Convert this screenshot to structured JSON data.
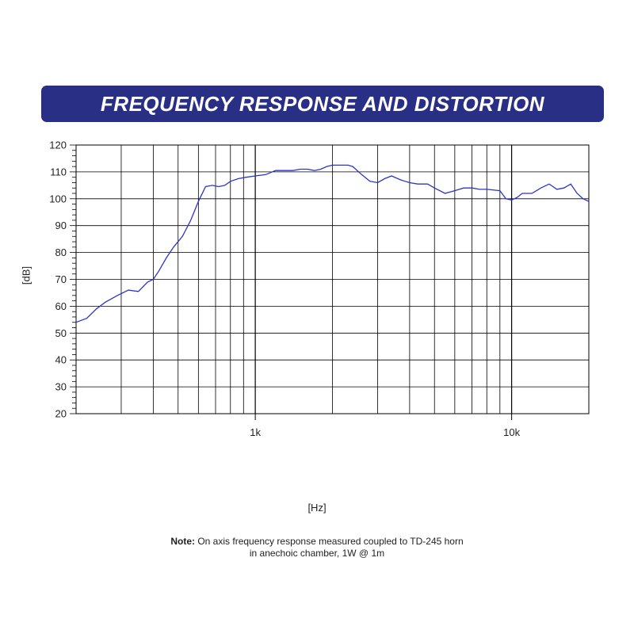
{
  "header": {
    "title": "FREQUENCY RESPONSE AND DISTORTION"
  },
  "note": {
    "label": "Note:",
    "line1": "On axis frequency response measured coupled to TD-245 horn",
    "line2": "in anechoic chamber, 1W @ 1m"
  },
  "colors": {
    "banner": "#2a2f86",
    "curve": "#2b36c8",
    "grid": "#000000"
  },
  "chart_data": {
    "type": "line",
    "title": "FREQUENCY RESPONSE AND DISTORTION",
    "xlabel": "[Hz]",
    "ylabel": "[dB]",
    "xscale": "log",
    "xlim": [
      200,
      20000
    ],
    "ylim": [
      20,
      120
    ],
    "yticks": [
      20,
      30,
      40,
      50,
      60,
      70,
      80,
      90,
      100,
      110,
      120
    ],
    "xtick_labels": [
      {
        "value": 1000,
        "label": "1k"
      },
      {
        "value": 10000,
        "label": "10k"
      }
    ],
    "grid": true,
    "series": [
      {
        "x": [
          200,
          220,
          240,
          260,
          290,
          320,
          350,
          380,
          400,
          420,
          450,
          480,
          520,
          560,
          600,
          640,
          680,
          720,
          760,
          800,
          860,
          920,
          1000,
          1100,
          1200,
          1300,
          1400,
          1500,
          1600,
          1700,
          1800,
          1900,
          2000,
          2100,
          2200,
          2300,
          2400,
          2600,
          2800,
          3000,
          3200,
          3400,
          3700,
          4000,
          4300,
          4700,
          5000,
          5500,
          6000,
          6500,
          7000,
          7500,
          8000,
          9000,
          9500,
          10000,
          10500,
          11000,
          12000,
          12500,
          13000,
          14000,
          14500,
          15000,
          16000,
          17000,
          18000,
          19000,
          20000
        ],
        "y": [
          54,
          55.5,
          59,
          61.5,
          64,
          66,
          65.5,
          69,
          70,
          73,
          78,
          82,
          86,
          92,
          99,
          104.5,
          105,
          104.5,
          105,
          106.5,
          107.5,
          108,
          108.5,
          109,
          110.5,
          110.5,
          110.5,
          111,
          111,
          110.5,
          111,
          112,
          112.5,
          112.5,
          112.5,
          112.5,
          112,
          109,
          106.5,
          106,
          107.5,
          108.5,
          107,
          106,
          105.5,
          105.5,
          104,
          102,
          103,
          104,
          104,
          103.5,
          103.5,
          103,
          100,
          99.5,
          100.5,
          102,
          102,
          103,
          104,
          105.5,
          104.5,
          103.5,
          104,
          105.5,
          102,
          100,
          99
        ]
      }
    ]
  }
}
